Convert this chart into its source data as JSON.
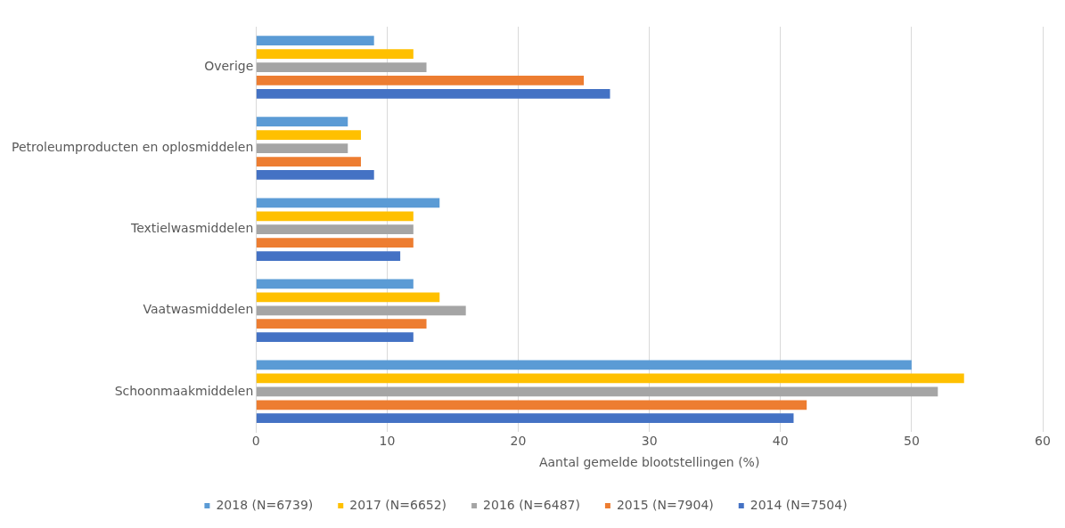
{
  "chart_data": {
    "type": "bar",
    "orientation": "horizontal",
    "categories": [
      "Overige",
      "Petroleumproducten en oplosmiddelen",
      "Textielwasmiddelen",
      "Vaatwasmiddelen",
      "Schoonmaakmiddelen"
    ],
    "series": [
      {
        "name": "2018 (N=6739)",
        "color": "#5b9bd5",
        "values": [
          9,
          7,
          14,
          12,
          50
        ]
      },
      {
        "name": "2017 (N=6652)",
        "color": "#ffc000",
        "values": [
          12,
          8,
          12,
          14,
          54
        ]
      },
      {
        "name": "2016 (N=6487)",
        "color": "#a5a5a5",
        "values": [
          13,
          7,
          12,
          16,
          52
        ]
      },
      {
        "name": "2015 (N=7904)",
        "color": "#ed7d31",
        "values": [
          25,
          8,
          12,
          13,
          42
        ]
      },
      {
        "name": "2014 (N=7504)",
        "color": "#4472c4",
        "values": [
          27,
          9,
          11,
          12,
          41
        ]
      }
    ],
    "xlabel": "Aantal gemelde blootstellingen (%)",
    "xlim": [
      0,
      60
    ],
    "xticks": [
      0,
      10,
      20,
      30,
      40,
      50,
      60
    ],
    "grid": "x",
    "legend": "bottom"
  }
}
